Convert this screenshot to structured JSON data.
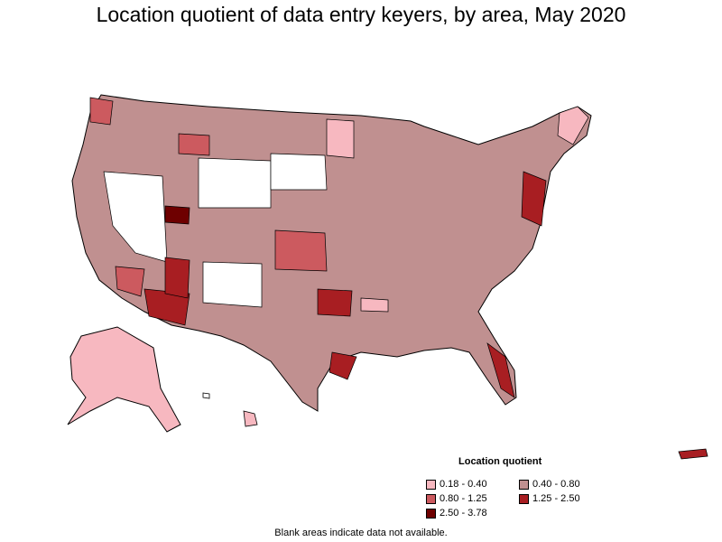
{
  "title": "Location quotient of data entry keyers, by area, May 2020",
  "legend": {
    "title": "Location quotient",
    "items": [
      {
        "label": "0.18 - 0.40",
        "color": "#f7b8c0"
      },
      {
        "label": "0.40 - 0.80",
        "color": "#c09090"
      },
      {
        "label": "0.80 - 1.25",
        "color": "#cc5a5f"
      },
      {
        "label": "1.25 - 2.50",
        "color": "#a81e22"
      },
      {
        "label": "2.50 - 3.78",
        "color": "#6e0000"
      }
    ]
  },
  "footnote": "Blank areas indicate data not available.",
  "colors": {
    "no_data": "#ffffff",
    "border": "#000000"
  }
}
